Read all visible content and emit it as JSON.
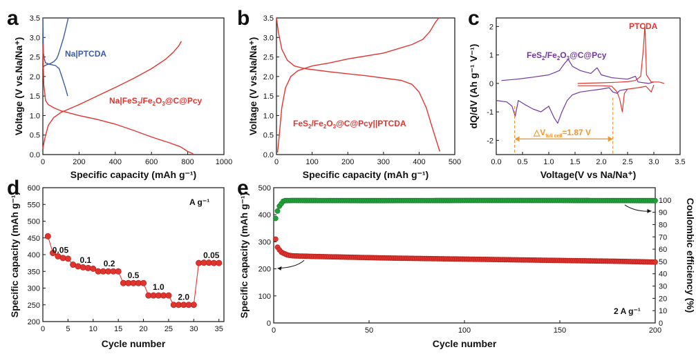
{
  "colors": {
    "red": "#e2342f",
    "blue": "#3a5aa8",
    "purple": "#6f36a0",
    "orange": "#f0962e",
    "green": "#22a03a"
  },
  "chart_data": [
    {
      "panel": "a",
      "type": "line",
      "xlabel": "Specific capacity (mAh g⁻¹)",
      "ylabel": "Voltage (V vs.Na/Na⁺)",
      "xlim": [
        0,
        1000
      ],
      "ylim": [
        0,
        3.5
      ],
      "xticks": [
        0,
        200,
        400,
        600,
        800,
        1000
      ],
      "yticks": [
        0.0,
        0.5,
        1.0,
        1.5,
        2.0,
        2.5,
        3.0,
        3.5
      ],
      "annotations": [
        "Na|PTCDA",
        "Na|FeS₂/Fe₂O₃@C@Pcy"
      ],
      "series": [
        {
          "name": "Na|PTCDA",
          "color": "blue",
          "points": [
            [
              0,
              3.5
            ],
            [
              3,
              2.6
            ],
            [
              8,
              2.45
            ],
            [
              15,
              2.35
            ],
            [
              40,
              2.31
            ],
            [
              70,
              2.28
            ],
            [
              90,
              2.2
            ],
            [
              105,
              2.0
            ],
            [
              115,
              1.85
            ],
            [
              125,
              1.7
            ],
            [
              137,
              1.5
            ]
          ]
        },
        {
          "name": "Na|PTCDA",
          "color": "blue",
          "points": [
            [
              0,
              2.2
            ],
            [
              5,
              2.26
            ],
            [
              20,
              2.3
            ],
            [
              40,
              2.33
            ],
            [
              60,
              2.38
            ],
            [
              75,
              2.45
            ],
            [
              85,
              2.55
            ],
            [
              95,
              2.7
            ],
            [
              105,
              2.85
            ],
            [
              115,
              3.0
            ],
            [
              125,
              3.2
            ],
            [
              133,
              3.35
            ],
            [
              140,
              3.5
            ]
          ]
        },
        {
          "name": "Na|FeS₂/Fe₂O₃@C@Pcy",
          "color": "red",
          "points": [
            [
              0,
              2.85
            ],
            [
              5,
              1.8
            ],
            [
              15,
              1.38
            ],
            [
              30,
              1.28
            ],
            [
              60,
              1.2
            ],
            [
              100,
              1.12
            ],
            [
              200,
              1.0
            ],
            [
              300,
              0.9
            ],
            [
              400,
              0.78
            ],
            [
              500,
              0.62
            ],
            [
              600,
              0.45
            ],
            [
              700,
              0.3
            ],
            [
              760,
              0.2
            ],
            [
              800,
              0.08
            ],
            [
              830,
              0.02
            ]
          ]
        },
        {
          "name": "Na|FeS₂/Fe₂O₃@C@Pcy",
          "color": "red",
          "points": [
            [
              0,
              0.15
            ],
            [
              10,
              0.4
            ],
            [
              30,
              0.75
            ],
            [
              60,
              0.95
            ],
            [
              100,
              1.08
            ],
            [
              200,
              1.28
            ],
            [
              300,
              1.5
            ],
            [
              400,
              1.72
            ],
            [
              500,
              1.95
            ],
            [
              600,
              2.2
            ],
            [
              680,
              2.45
            ],
            [
              720,
              2.62
            ],
            [
              750,
              2.78
            ],
            [
              765,
              2.9
            ]
          ]
        }
      ]
    },
    {
      "panel": "b",
      "type": "line",
      "xlabel": "Specific capacity (mAh g⁻¹)",
      "ylabel": "Voltage (V vs.Na/Na⁺)",
      "xlim": [
        0,
        500
      ],
      "ylim": [
        0,
        3.5
      ],
      "xticks": [
        0,
        100,
        200,
        300,
        400,
        500
      ],
      "yticks": [
        0.0,
        0.5,
        1.0,
        1.5,
        2.0,
        2.5,
        3.0,
        3.5
      ],
      "annotations": [
        "FeS₂/Fe₂O₃@C@Pcy||PTCDA"
      ],
      "series": [
        {
          "name": "",
          "color": "red",
          "points": [
            [
              0,
              3.5
            ],
            [
              5,
              3.15
            ],
            [
              15,
              2.7
            ],
            [
              30,
              2.42
            ],
            [
              50,
              2.27
            ],
            [
              80,
              2.2
            ],
            [
              150,
              2.12
            ],
            [
              250,
              2.02
            ],
            [
              350,
              1.9
            ],
            [
              380,
              1.8
            ],
            [
              400,
              1.6
            ],
            [
              420,
              1.2
            ],
            [
              440,
              0.6
            ],
            [
              458,
              0.08
            ]
          ]
        },
        {
          "name": "",
          "color": "red",
          "points": [
            [
              3,
              0.05
            ],
            [
              8,
              0.5
            ],
            [
              15,
              1.2
            ],
            [
              25,
              1.7
            ],
            [
              40,
              2.0
            ],
            [
              60,
              2.15
            ],
            [
              100,
              2.27
            ],
            [
              150,
              2.35
            ],
            [
              200,
              2.45
            ],
            [
              300,
              2.6
            ],
            [
              380,
              2.82
            ],
            [
              410,
              2.95
            ],
            [
              430,
              3.15
            ],
            [
              445,
              3.38
            ],
            [
              455,
              3.5
            ]
          ]
        }
      ]
    },
    {
      "panel": "c",
      "type": "line",
      "xlabel": "Voltage(V vs Na/Na⁺)",
      "ylabel": "dQ/dV (Ah g⁻¹ V⁻¹)",
      "xlim": [
        0,
        3.5
      ],
      "ylim": [
        -2.5,
        2.3
      ],
      "xticks": [
        0.0,
        0.5,
        1.0,
        1.5,
        2.0,
        2.5,
        3.0,
        3.5
      ],
      "yticks": [
        -2,
        -1,
        0,
        1,
        2
      ],
      "annotations": [
        "FeS₂/Fe₂O₃@C@Pcy",
        "PTCDA",
        "△V_full cell=1.87 V"
      ],
      "delta_v": [
        0.35,
        2.22
      ],
      "series": [
        {
          "name": "FeS₂/Fe₂O₃@C@Pcy",
          "color": "purple",
          "points": [
            [
              0.1,
              0.1
            ],
            [
              0.4,
              0.15
            ],
            [
              0.7,
              0.22
            ],
            [
              1.0,
              0.3
            ],
            [
              1.2,
              0.45
            ],
            [
              1.3,
              0.7
            ],
            [
              1.37,
              0.85
            ],
            [
              1.45,
              0.6
            ],
            [
              1.6,
              0.45
            ],
            [
              1.8,
              0.35
            ],
            [
              1.92,
              0.55
            ],
            [
              2.0,
              0.3
            ],
            [
              2.2,
              0.2
            ],
            [
              2.5,
              0.15
            ],
            [
              2.65,
              0.25
            ],
            [
              2.7,
              0.05
            ],
            [
              2.9,
              0.0
            ],
            [
              3.0,
              0.05
            ]
          ]
        },
        {
          "name": "FeS₂/Fe₂O₃@C@Pcy",
          "color": "purple",
          "points": [
            [
              0.0,
              -0.6
            ],
            [
              0.2,
              -0.65
            ],
            [
              0.3,
              -0.8
            ],
            [
              0.36,
              -1.15
            ],
            [
              0.42,
              -0.6
            ],
            [
              0.55,
              -0.75
            ],
            [
              0.7,
              -0.9
            ],
            [
              0.85,
              -1.0
            ],
            [
              1.0,
              -0.8
            ],
            [
              1.1,
              -1.2
            ],
            [
              1.17,
              -1.4
            ],
            [
              1.25,
              -1.0
            ],
            [
              1.35,
              -0.6
            ],
            [
              1.45,
              -0.4
            ],
            [
              1.6,
              -0.3
            ],
            [
              1.8,
              -0.25
            ],
            [
              2.0,
              -0.2
            ],
            [
              2.15,
              -0.15
            ],
            [
              2.22,
              -0.3
            ],
            [
              2.3,
              -0.35
            ],
            [
              2.35,
              -0.25
            ],
            [
              2.5,
              -0.2
            ]
          ]
        },
        {
          "name": "PTCDA",
          "color": "red",
          "points": [
            [
              1.55,
              0.0
            ],
            [
              2.0,
              0.02
            ],
            [
              2.3,
              0.04
            ],
            [
              2.5,
              0.06
            ],
            [
              2.65,
              0.1
            ],
            [
              2.75,
              0.25
            ],
            [
              2.8,
              1.2
            ],
            [
              2.83,
              2.05
            ],
            [
              2.86,
              0.3
            ],
            [
              2.95,
              0.05
            ],
            [
              3.1,
              0.05
            ],
            [
              3.2,
              0.0
            ]
          ]
        },
        {
          "name": "PTCDA",
          "color": "red",
          "points": [
            [
              1.55,
              -0.08
            ],
            [
              2.0,
              -0.08
            ],
            [
              2.2,
              -0.1
            ],
            [
              2.3,
              -0.3
            ],
            [
              2.35,
              -0.55
            ],
            [
              2.4,
              -1.0
            ],
            [
              2.44,
              -0.35
            ],
            [
              2.5,
              -0.2
            ],
            [
              2.7,
              -0.15
            ],
            [
              2.85,
              -0.1
            ],
            [
              2.95,
              -0.3
            ],
            [
              3.0,
              -0.05
            ]
          ]
        }
      ]
    },
    {
      "panel": "d",
      "type": "scatter",
      "xlabel": "Cycle number",
      "ylabel": "Specific capacity (mAh g⁻¹)",
      "xlim": [
        0,
        36
      ],
      "ylim": [
        200,
        600
      ],
      "xticks": [
        0,
        5,
        10,
        15,
        20,
        25,
        30,
        35
      ],
      "yticks": [
        200,
        250,
        300,
        350,
        400,
        450,
        500,
        550,
        600
      ],
      "unit_label": "A g⁻¹",
      "rate_labels": [
        {
          "text": "0.05",
          "x": 3.5,
          "y": 405
        },
        {
          "text": "0.1",
          "x": 8.5,
          "y": 375
        },
        {
          "text": "0.2",
          "x": 13.2,
          "y": 365
        },
        {
          "text": "0.5",
          "x": 18,
          "y": 330
        },
        {
          "text": "1.0",
          "x": 23,
          "y": 295
        },
        {
          "text": "2.0",
          "x": 28,
          "y": 265
        },
        {
          "text": "0.05",
          "x": 33.5,
          "y": 390
        }
      ],
      "points": [
        [
          1,
          455
        ],
        [
          2,
          405
        ],
        [
          3,
          395
        ],
        [
          4,
          390
        ],
        [
          5,
          388
        ],
        [
          6,
          370
        ],
        [
          7,
          365
        ],
        [
          8,
          362
        ],
        [
          9,
          360
        ],
        [
          10,
          358
        ],
        [
          11,
          350
        ],
        [
          12,
          350
        ],
        [
          13,
          350
        ],
        [
          14,
          350
        ],
        [
          15,
          350
        ],
        [
          16,
          315
        ],
        [
          17,
          315
        ],
        [
          18,
          315
        ],
        [
          19,
          315
        ],
        [
          20,
          315
        ],
        [
          21,
          278
        ],
        [
          22,
          278
        ],
        [
          23,
          278
        ],
        [
          24,
          278
        ],
        [
          25,
          278
        ],
        [
          26,
          250
        ],
        [
          27,
          250
        ],
        [
          28,
          250
        ],
        [
          29,
          250
        ],
        [
          30,
          250
        ],
        [
          31,
          375
        ],
        [
          32,
          376
        ],
        [
          33,
          376
        ],
        [
          34,
          375
        ],
        [
          35,
          375
        ]
      ]
    },
    {
      "panel": "e",
      "type": "scatter",
      "xlabel": "Cycle number",
      "ylabel": "Specific capacity (mAh g⁻¹)",
      "y2label": "Coulombic efficiency (%)",
      "xlim": [
        0,
        200
      ],
      "ylim": [
        0,
        500
      ],
      "y2lim": [
        0,
        110
      ],
      "xticks": [
        0,
        50,
        100,
        150,
        200
      ],
      "yticks": [
        0,
        100,
        200,
        300,
        400,
        500
      ],
      "y2ticks": [
        0,
        10,
        20,
        30,
        40,
        50,
        60,
        70,
        80,
        90,
        100
      ],
      "rate_text": "2 A g⁻¹",
      "capacity_points": [
        [
          1,
          310
        ],
        [
          2,
          280
        ],
        [
          3,
          270
        ],
        [
          4,
          262
        ],
        [
          5,
          258
        ],
        [
          6,
          255
        ],
        [
          7,
          252
        ],
        [
          8,
          250
        ],
        [
          10,
          248
        ],
        [
          20,
          246
        ],
        [
          40,
          243
        ],
        [
          60,
          240
        ],
        [
          80,
          238
        ],
        [
          100,
          236
        ],
        [
          120,
          234
        ],
        [
          140,
          232
        ],
        [
          160,
          230
        ],
        [
          180,
          228
        ],
        [
          200,
          225
        ]
      ],
      "ce_points": [
        [
          1,
          85
        ],
        [
          2,
          91
        ],
        [
          3,
          95
        ],
        [
          4,
          97
        ],
        [
          5,
          99
        ],
        [
          6,
          99.5
        ],
        [
          10,
          99.6
        ],
        [
          50,
          99.5
        ],
        [
          100,
          99.6
        ],
        [
          150,
          99.6
        ],
        [
          200,
          99.5
        ]
      ]
    }
  ]
}
